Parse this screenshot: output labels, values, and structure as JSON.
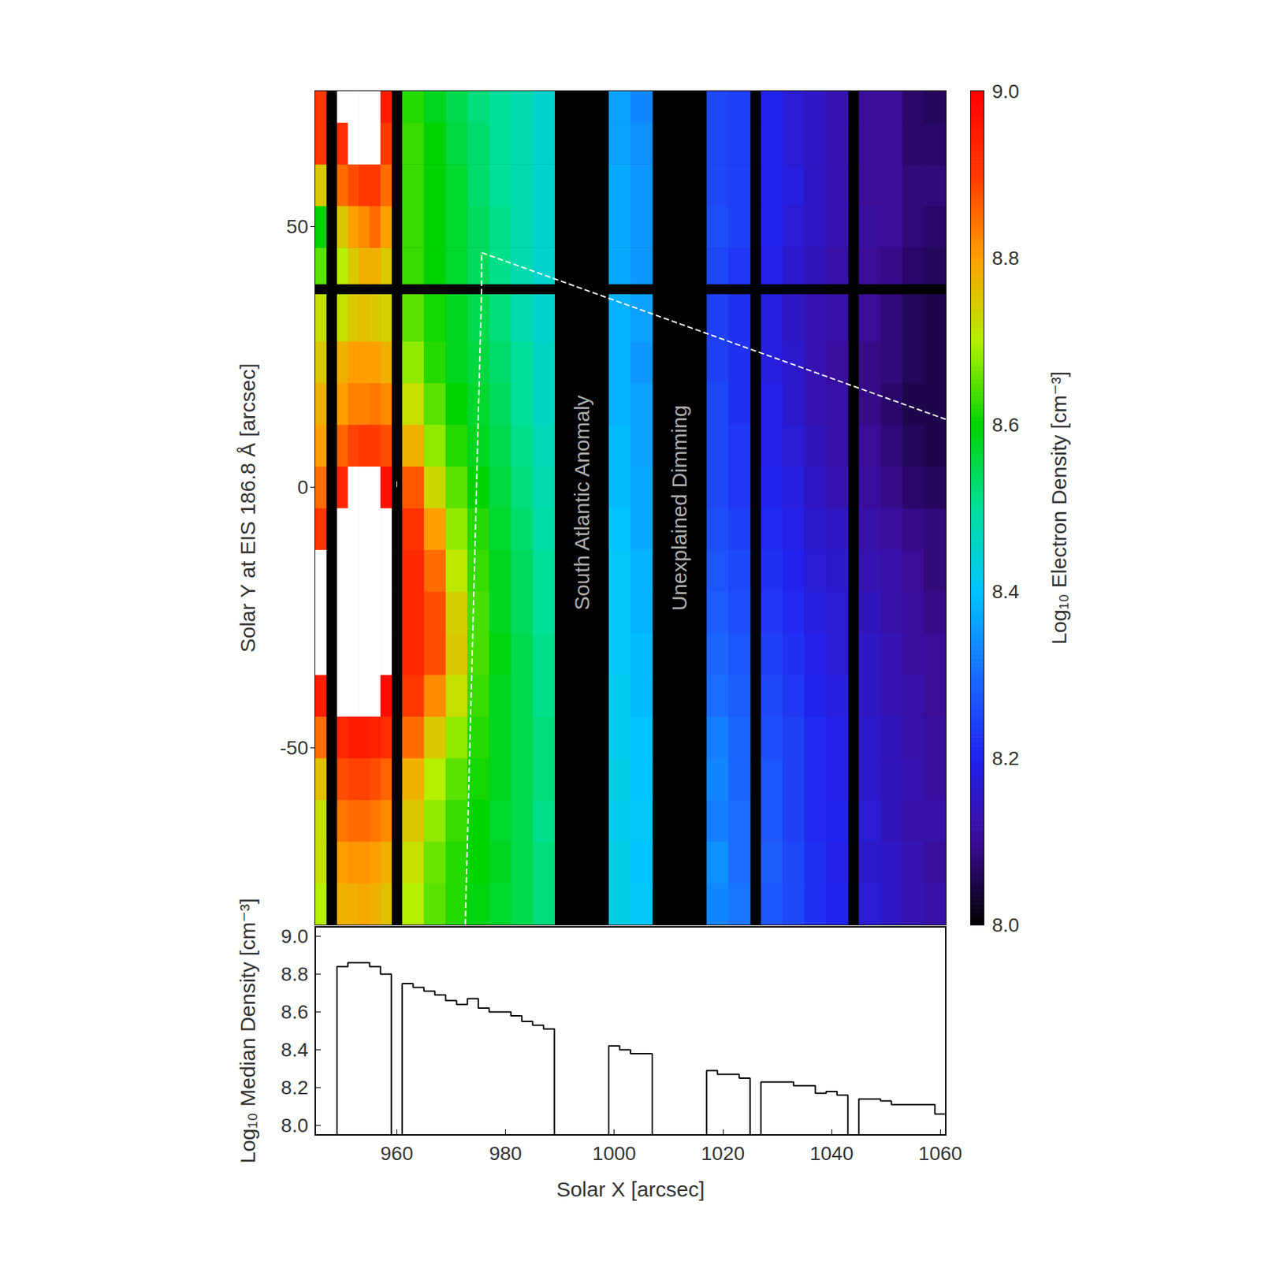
{
  "chart_data": [
    {
      "type": "heatmap",
      "ylabel": "Solar Y at EIS 186.8 Å [arcsec]",
      "xlim": [
        945,
        1061
      ],
      "xticks": [
        960,
        980,
        1000,
        1020,
        1040,
        1060
      ],
      "ylim": [
        -84,
        76
      ],
      "yticks": [
        -50,
        0,
        50
      ],
      "tick_labels": "y",
      "columns": [
        [
          945,
          947
        ],
        [
          949,
          951
        ],
        [
          951,
          953
        ],
        [
          953,
          955
        ],
        [
          955,
          957
        ],
        [
          957,
          959
        ],
        [
          961,
          965
        ],
        [
          965,
          969
        ],
        [
          969,
          973
        ],
        [
          973,
          977
        ],
        [
          977,
          981
        ],
        [
          981,
          985
        ],
        [
          985,
          989
        ],
        [
          999,
          1003
        ],
        [
          1003,
          1007
        ],
        [
          1017,
          1021
        ],
        [
          1021,
          1025
        ],
        [
          1027,
          1031
        ],
        [
          1031,
          1035
        ],
        [
          1035,
          1039
        ],
        [
          1039,
          1043
        ],
        [
          1045,
          1049
        ],
        [
          1049,
          1053
        ],
        [
          1053,
          1057
        ],
        [
          1057,
          1061
        ]
      ],
      "rows": [
        [
          -84,
          -76
        ],
        [
          -76,
          -68
        ],
        [
          -68,
          -60
        ],
        [
          -60,
          -52
        ],
        [
          -52,
          -44
        ],
        [
          -44,
          -36
        ],
        [
          -36,
          -28
        ],
        [
          -28,
          -20
        ],
        [
          -20,
          -12
        ],
        [
          -12,
          -4
        ],
        [
          -4,
          4
        ],
        [
          4,
          12
        ],
        [
          12,
          20
        ],
        [
          20,
          28
        ],
        [
          28,
          37
        ],
        [
          39,
          46
        ],
        [
          46,
          54
        ],
        [
          54,
          62
        ],
        [
          62,
          70
        ],
        [
          70,
          76
        ]
      ],
      "cells": [
        [
          8.7,
          8.78,
          8.78,
          8.79,
          8.78,
          8.76,
          8.7,
          8.65,
          8.62,
          8.59,
          8.57,
          8.55,
          8.52,
          8.43,
          8.41,
          8.33,
          8.31,
          8.27,
          8.25,
          8.22,
          8.2,
          8.17,
          8.15,
          8.13,
          8.12
        ],
        [
          8.72,
          8.8,
          8.81,
          8.81,
          8.8,
          8.78,
          8.72,
          8.66,
          8.62,
          8.6,
          8.58,
          8.55,
          8.52,
          8.43,
          8.4,
          8.34,
          8.3,
          8.28,
          8.25,
          8.22,
          8.19,
          8.16,
          8.15,
          8.13,
          8.11
        ],
        [
          8.72,
          8.84,
          8.85,
          8.85,
          8.84,
          8.82,
          8.75,
          8.68,
          8.63,
          8.6,
          8.57,
          8.55,
          8.51,
          8.42,
          8.41,
          8.32,
          8.3,
          8.27,
          8.24,
          8.21,
          8.2,
          8.17,
          8.14,
          8.12,
          8.12
        ],
        [
          8.76,
          8.88,
          8.89,
          8.89,
          8.88,
          8.86,
          8.78,
          8.7,
          8.65,
          8.61,
          8.58,
          8.55,
          8.52,
          8.43,
          8.4,
          8.33,
          8.29,
          8.27,
          8.24,
          8.21,
          8.19,
          8.16,
          8.14,
          8.13,
          8.11
        ],
        [
          8.85,
          8.93,
          8.95,
          8.95,
          8.94,
          8.92,
          8.85,
          8.75,
          8.68,
          8.62,
          8.58,
          8.55,
          8.52,
          8.42,
          8.4,
          8.32,
          8.29,
          8.26,
          8.24,
          8.21,
          8.19,
          8.16,
          8.14,
          8.12,
          8.11
        ],
        [
          8.95,
          9.1,
          9.1,
          9.1,
          9.1,
          8.98,
          8.9,
          8.82,
          8.72,
          8.63,
          8.58,
          8.55,
          8.51,
          8.42,
          8.39,
          8.3,
          8.28,
          8.25,
          8.23,
          8.2,
          8.18,
          8.15,
          8.13,
          8.12,
          8.1
        ],
        [
          9.1,
          9.1,
          9.1,
          9.1,
          9.1,
          9.02,
          8.93,
          8.88,
          8.75,
          8.64,
          8.59,
          8.55,
          8.51,
          8.41,
          8.39,
          8.29,
          8.27,
          8.24,
          8.22,
          8.19,
          8.17,
          8.15,
          8.13,
          8.11,
          8.1
        ],
        [
          9.1,
          9.1,
          9.1,
          9.1,
          9.1,
          9.05,
          8.93,
          8.88,
          8.74,
          8.64,
          8.58,
          8.54,
          8.5,
          8.41,
          8.38,
          8.28,
          8.26,
          8.23,
          8.21,
          8.18,
          8.17,
          8.14,
          8.12,
          8.11,
          8.09
        ],
        [
          9.1,
          9.1,
          9.1,
          9.1,
          9.1,
          9.05,
          8.93,
          8.85,
          8.71,
          8.63,
          8.58,
          8.54,
          8.5,
          8.41,
          8.38,
          8.27,
          8.25,
          8.22,
          8.2,
          8.17,
          8.16,
          8.13,
          8.12,
          8.1,
          8.08
        ],
        [
          8.9,
          9.1,
          9.1,
          9.1,
          9.1,
          9.03,
          8.91,
          8.8,
          8.68,
          8.62,
          8.57,
          8.53,
          8.49,
          8.4,
          8.37,
          8.26,
          8.24,
          8.21,
          8.19,
          8.16,
          8.15,
          8.12,
          8.11,
          8.09,
          8.08
        ],
        [
          8.85,
          8.93,
          9.1,
          9.1,
          9.1,
          8.97,
          8.87,
          8.73,
          8.65,
          8.6,
          8.56,
          8.52,
          8.48,
          8.39,
          8.37,
          8.25,
          8.23,
          8.2,
          8.18,
          8.15,
          8.13,
          8.11,
          8.09,
          8.07,
          8.06
        ],
        [
          8.8,
          8.86,
          8.89,
          8.9,
          8.9,
          8.88,
          8.78,
          8.68,
          8.62,
          8.58,
          8.55,
          8.51,
          8.47,
          8.39,
          8.36,
          8.25,
          8.23,
          8.19,
          8.17,
          8.14,
          8.12,
          8.1,
          8.08,
          8.06,
          8.05
        ],
        [
          8.78,
          8.8,
          8.83,
          8.83,
          8.84,
          8.82,
          8.72,
          8.65,
          8.6,
          8.57,
          8.54,
          8.5,
          8.46,
          8.38,
          8.36,
          8.25,
          8.22,
          8.19,
          8.16,
          8.13,
          8.12,
          8.09,
          8.07,
          8.05,
          8.05
        ],
        [
          8.75,
          8.78,
          8.8,
          8.8,
          8.8,
          8.78,
          8.68,
          8.62,
          8.58,
          8.56,
          8.53,
          8.5,
          8.46,
          8.38,
          8.35,
          8.24,
          8.22,
          8.18,
          8.16,
          8.13,
          8.11,
          8.09,
          8.08,
          8.06,
          8.05
        ],
        [
          8.72,
          8.72,
          8.75,
          8.76,
          8.75,
          8.74,
          8.65,
          8.61,
          8.58,
          8.55,
          8.52,
          8.48,
          8.45,
          8.38,
          8.36,
          8.24,
          8.22,
          8.18,
          8.15,
          8.13,
          8.12,
          8.1,
          8.08,
          8.06,
          8.05
        ],
        [
          8.65,
          8.7,
          8.75,
          8.78,
          8.78,
          8.75,
          8.63,
          8.6,
          8.57,
          8.54,
          8.51,
          8.48,
          8.45,
          8.37,
          8.35,
          8.25,
          8.23,
          8.19,
          8.16,
          8.14,
          8.12,
          8.1,
          8.09,
          8.07,
          8.06
        ],
        [
          8.6,
          8.75,
          8.8,
          8.82,
          8.85,
          8.8,
          8.63,
          8.6,
          8.57,
          8.54,
          8.51,
          8.48,
          8.45,
          8.37,
          8.35,
          8.26,
          8.24,
          8.2,
          8.17,
          8.15,
          8.13,
          8.11,
          8.1,
          8.08,
          8.07
        ],
        [
          8.75,
          8.85,
          8.88,
          8.9,
          8.9,
          8.85,
          8.63,
          8.6,
          8.57,
          8.53,
          8.5,
          8.48,
          8.45,
          8.37,
          8.35,
          8.25,
          8.24,
          8.2,
          8.18,
          8.15,
          8.13,
          8.1,
          8.1,
          8.08,
          8.08
        ],
        [
          8.9,
          8.92,
          9.1,
          9.1,
          9.1,
          8.9,
          8.63,
          8.6,
          8.56,
          8.53,
          8.5,
          8.48,
          8.45,
          8.36,
          8.34,
          8.25,
          8.24,
          8.2,
          8.17,
          8.15,
          8.13,
          8.1,
          8.1,
          8.07,
          8.07
        ],
        [
          8.9,
          9.1,
          9.1,
          9.1,
          9.1,
          8.95,
          8.62,
          8.58,
          8.55,
          8.52,
          8.5,
          8.48,
          8.45,
          8.36,
          8.33,
          8.25,
          8.24,
          8.2,
          8.17,
          8.15,
          8.13,
          8.1,
          8.1,
          8.07,
          8.06
        ]
      ],
      "colorbar": {
        "label": "Log₁₀ Electron Density [cm⁻³]",
        "range": [
          8.0,
          9.0
        ],
        "ticks": [
          {
            "value": 8,
            "label": "8.0"
          },
          8.2,
          8.4,
          8.6,
          8.8,
          {
            "value": 9,
            "label": "9.0"
          }
        ]
      },
      "dashed_line": {
        "x": [
          972.6,
          975.6,
          975.6,
          1061
        ],
        "y": [
          -84,
          38,
          45,
          13
        ],
        "color": "#ffffff",
        "line_style": "dashed"
      },
      "annotations": [
        {
          "text": "South Atlantic Anomaly",
          "x": 994,
          "y": -3
        },
        {
          "text": "Unexplained Dimming",
          "x": 1012,
          "y": -4
        }
      ]
    },
    {
      "type": "step",
      "xlabel": "Solar X [arcsec]",
      "ylabel": "Log₁₀ Median Density [cm⁻³]",
      "xlim": [
        945,
        1061
      ],
      "xticks": [
        960,
        980,
        1000,
        1020,
        1040,
        1060
      ],
      "ylim": [
        7.95,
        9.05
      ],
      "yticks": [
        {
          "value": 8,
          "label": "8.0"
        },
        8.2,
        8.4,
        8.6,
        8.8,
        {
          "value": 9,
          "label": "9.0"
        }
      ],
      "color": "#000000",
      "bins": [
        949,
        951,
        953,
        955,
        957,
        959,
        961,
        963,
        965,
        967,
        969,
        971,
        973,
        975,
        977,
        979,
        981,
        983,
        985,
        987,
        989,
        999,
        1001,
        1003,
        1005,
        1007,
        1017,
        1019,
        1021,
        1023,
        1025,
        1027,
        1029,
        1031,
        1033,
        1035,
        1037,
        1039,
        1041,
        1043,
        1045,
        1047,
        1049,
        1051,
        1053,
        1055,
        1057,
        1059,
        1061
      ],
      "values": [
        8.84,
        8.86,
        8.86,
        8.84,
        8.8,
        null,
        8.75,
        8.73,
        8.71,
        8.69,
        8.66,
        8.64,
        8.67,
        8.62,
        8.6,
        8.6,
        8.58,
        8.55,
        8.53,
        8.51,
        null,
        8.42,
        8.4,
        8.38,
        8.38,
        null,
        8.29,
        8.27,
        8.27,
        8.25,
        null,
        8.23,
        8.23,
        8.23,
        8.21,
        8.21,
        8.17,
        8.18,
        8.16,
        null,
        8.14,
        8.14,
        8.13,
        8.11,
        8.11,
        8.11,
        8.11,
        8.06
      ]
    }
  ]
}
